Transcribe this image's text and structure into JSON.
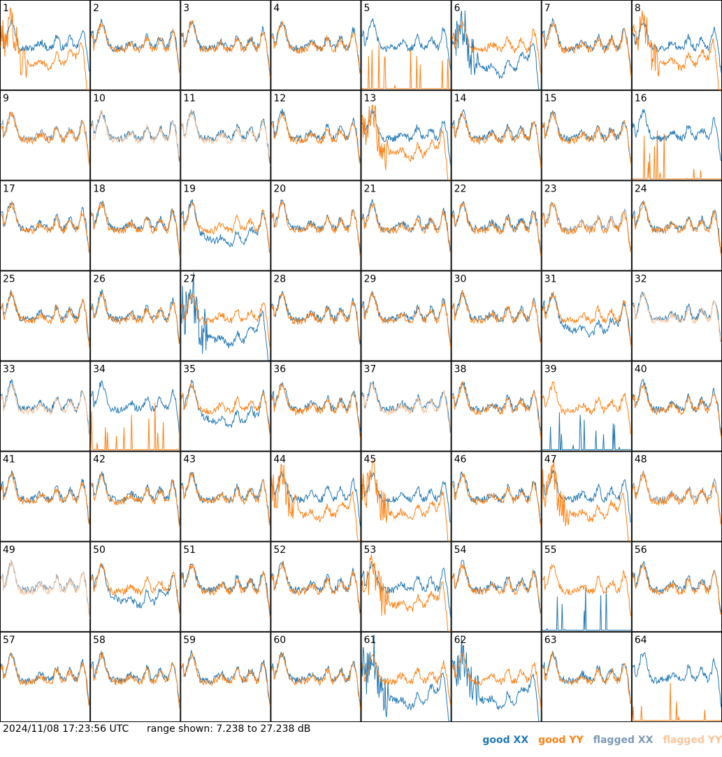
{
  "chart_data": {
    "type": "line",
    "layout": "8x8 small multiples",
    "panels": [
      "1",
      "2",
      "3",
      "4",
      "5",
      "6",
      "7",
      "8",
      "9",
      "10",
      "11",
      "12",
      "13",
      "14",
      "15",
      "16",
      "17",
      "18",
      "19",
      "20",
      "21",
      "22",
      "23",
      "24",
      "25",
      "26",
      "27",
      "28",
      "29",
      "30",
      "31",
      "32",
      "33",
      "34",
      "35",
      "36",
      "37",
      "38",
      "39",
      "40",
      "41",
      "42",
      "43",
      "44",
      "45",
      "46",
      "47",
      "48",
      "49",
      "50",
      "51",
      "52",
      "53",
      "54",
      "55",
      "56",
      "57",
      "58",
      "59",
      "60",
      "61",
      "62",
      "63",
      "64"
    ],
    "ylim": [
      7.238,
      27.238
    ],
    "yunit": "dB",
    "series": [
      {
        "name": "good XX",
        "color": "#1f77b4"
      },
      {
        "name": "good YY",
        "color": "#ff7f0e"
      },
      {
        "name": "flagged XX",
        "color": "#7b9ab5"
      },
      {
        "name": "flagged YY",
        "color": "#f8c49a"
      }
    ],
    "flagged_xx_panels": [
      "9",
      "23",
      "48",
      "49"
    ],
    "flagged_yy_panels": [
      "10",
      "11",
      "32",
      "33",
      "37",
      "49"
    ],
    "spike_panels_xx": [
      "39",
      "55"
    ],
    "spike_panels_yy": [
      "5",
      "16",
      "34",
      "64"
    ]
  },
  "footer": {
    "timestamp": "2024/11/08 17:23:56 UTC",
    "range_text": "range shown: 7.238 to 27.238 dB"
  },
  "legend": {
    "good_xx": "good XX",
    "good_yy": "good YY",
    "flagged_xx": "flagged XX",
    "flagged_yy": "flagged YY"
  }
}
